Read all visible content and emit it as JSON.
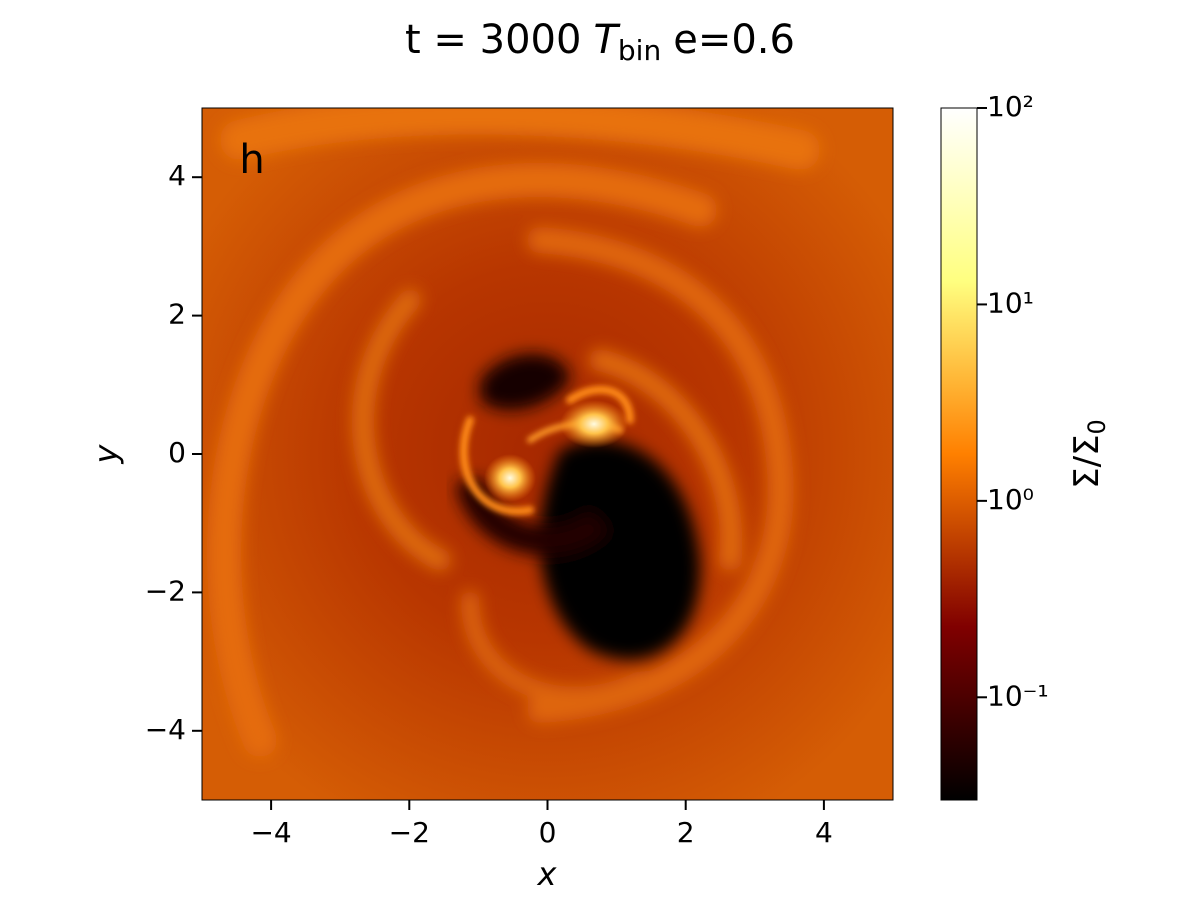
{
  "chart_data": {
    "type": "image",
    "title": {
      "text": "t = 3000",
      "symbol": "T",
      "subscript": "bin",
      "suffix": "e=0.6"
    },
    "panel_label": "h",
    "xlabel": "x",
    "ylabel": "y",
    "xlim": [
      -5,
      5
    ],
    "ylim": [
      -5,
      5
    ],
    "xticks": [
      {
        "value": -4,
        "label": "−4"
      },
      {
        "value": -2,
        "label": "−2"
      },
      0,
      2,
      4
    ],
    "yticks": [
      {
        "value": -4,
        "label": "−4"
      },
      {
        "value": -2,
        "label": "−2"
      },
      0,
      2,
      4
    ],
    "colormap": "afmhot",
    "colorbar": {
      "label": {
        "text": "Σ/Σ",
        "subscript": "0"
      },
      "log": true,
      "clim": [
        0.03,
        100
      ],
      "ticks": [
        {
          "value": 0.1,
          "label": "10⁻¹"
        },
        {
          "value": 1,
          "label": "10⁰"
        },
        {
          "value": 10,
          "label": "10¹"
        },
        {
          "value": 100,
          "label": "10²"
        }
      ]
    }
  }
}
